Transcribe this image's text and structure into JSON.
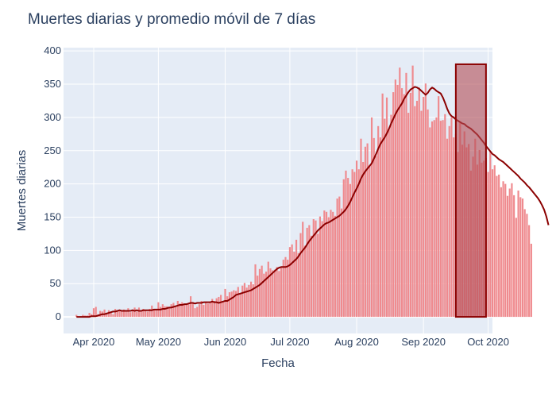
{
  "chart_data": {
    "type": "bar",
    "title": "Muertes diarias y promedio móvil de 7 días",
    "xlabel": "Fecha",
    "ylabel": "Muertes diarias",
    "x_range": [
      "2020-03-18",
      "2020-10-03"
    ],
    "ylim": [
      -25,
      405
    ],
    "yticks": [
      0,
      50,
      100,
      150,
      200,
      250,
      300,
      350,
      400
    ],
    "xticks": [
      {
        "date": "2020-04-01",
        "label": "Apr 2020"
      },
      {
        "date": "2020-05-01",
        "label": "May 2020"
      },
      {
        "date": "2020-06-01",
        "label": "Jun 2020"
      },
      {
        "date": "2020-07-01",
        "label": "Jul 2020"
      },
      {
        "date": "2020-08-01",
        "label": "Aug 2020"
      },
      {
        "date": "2020-09-01",
        "label": "Sep 2020"
      },
      {
        "date": "2020-10-01",
        "label": "Oct 2020"
      }
    ],
    "grid": true,
    "legend": "none",
    "start_date": "2020-03-20",
    "daily_deaths": [
      0,
      0,
      0,
      0,
      3,
      0,
      1,
      3,
      2,
      2,
      6,
      4,
      13,
      15,
      4,
      9,
      8,
      11,
      6,
      10,
      6,
      4,
      12,
      10,
      9,
      8,
      11,
      8,
      13,
      7,
      11,
      14,
      8,
      14,
      10,
      12,
      9,
      8,
      12,
      17,
      11,
      12,
      22,
      15,
      19,
      16,
      16,
      15,
      19,
      21,
      17,
      24,
      20,
      22,
      19,
      20,
      19,
      31,
      21,
      13,
      15,
      19,
      24,
      18,
      22,
      20,
      22,
      27,
      24,
      28,
      30,
      33,
      23,
      42,
      31,
      37,
      38,
      40,
      39,
      45,
      36,
      47,
      51,
      44,
      48,
      53,
      49,
      79,
      62,
      72,
      77,
      65,
      68,
      83,
      73,
      70,
      71,
      75,
      69,
      76,
      86,
      90,
      86,
      105,
      109,
      98,
      116,
      96,
      126,
      143,
      107,
      134,
      138,
      122,
      147,
      145,
      125,
      151,
      144,
      160,
      158,
      150,
      161,
      158,
      152,
      178,
      181,
      163,
      207,
      220,
      209,
      200,
      222,
      218,
      235,
      222,
      268,
      233,
      256,
      261,
      228,
      300,
      269,
      242,
      287,
      270,
      336,
      298,
      330,
      282,
      304,
      338,
      357,
      349,
      375,
      344,
      335,
      367,
      307,
      337,
      378,
      317,
      325,
      345,
      310,
      331,
      351,
      312,
      285,
      294,
      296,
      300,
      332,
      295,
      296,
      305,
      268,
      287,
      300,
      270,
      275,
      248,
      292,
      259,
      279,
      255,
      260,
      220,
      241,
      268,
      229,
      251,
      232,
      235,
      239,
      218,
      250,
      222,
      228,
      212,
      214,
      195,
      204,
      200,
      182,
      193,
      201,
      183,
      149,
      190,
      180,
      178,
      162,
      155,
      138,
      110
    ],
    "moving_avg": [
      0,
      0,
      0,
      0,
      0,
      0,
      0,
      1,
      1,
      1,
      2,
      3,
      4,
      4,
      5,
      6,
      7,
      8,
      8,
      9,
      10,
      9,
      9,
      9,
      9,
      9,
      10,
      9,
      10,
      9,
      9,
      10,
      10,
      10,
      10,
      10,
      11,
      11,
      11,
      11,
      12,
      12,
      13,
      14,
      14,
      15,
      16,
      17,
      18,
      18,
      19,
      19,
      20,
      21,
      21,
      20,
      21,
      21,
      21,
      22,
      22,
      22,
      22,
      23,
      22,
      22,
      21,
      22,
      23,
      24,
      24,
      26,
      28,
      30,
      33,
      34,
      35,
      36,
      37,
      38,
      39,
      40,
      42,
      44,
      46,
      48,
      51,
      54,
      57,
      60,
      63,
      66,
      69,
      72,
      74,
      75,
      75,
      75,
      76,
      78,
      81,
      84,
      87,
      91,
      96,
      100,
      104,
      109,
      114,
      118,
      122,
      126,
      130,
      133,
      136,
      139,
      141,
      142,
      144,
      146,
      148,
      150,
      152,
      155,
      158,
      162,
      167,
      173,
      180,
      187,
      193,
      200,
      208,
      214,
      219,
      223,
      227,
      231,
      238,
      245,
      253,
      260,
      265,
      270,
      276,
      283,
      291,
      298,
      305,
      311,
      316,
      321,
      328,
      333,
      338,
      342,
      344,
      346,
      345,
      343,
      340,
      337,
      334,
      337,
      342,
      345,
      343,
      340,
      338,
      336,
      330,
      322,
      313,
      306,
      302,
      300,
      297,
      295,
      293,
      291,
      290,
      287,
      285,
      283,
      280,
      277,
      274,
      270,
      266,
      262,
      257,
      253,
      249,
      245,
      243,
      240,
      237,
      235,
      233,
      230,
      227,
      224,
      221,
      218,
      215,
      212,
      208,
      205,
      202,
      198,
      195,
      191,
      187,
      183,
      179,
      174,
      168,
      161,
      151,
      138
    ],
    "highlight": {
      "x0": "2020-09-16",
      "x1": "2020-09-30",
      "y0": 0,
      "y1": 380
    },
    "colors": {
      "bars": "#ef8a8e",
      "line": "#8b0000",
      "highlight_fill": "#b34d55",
      "highlight_stroke": "#8b0000",
      "plot_bg": "#e5ecf6",
      "grid": "#ffffff",
      "text": "#2a3f5f"
    }
  }
}
